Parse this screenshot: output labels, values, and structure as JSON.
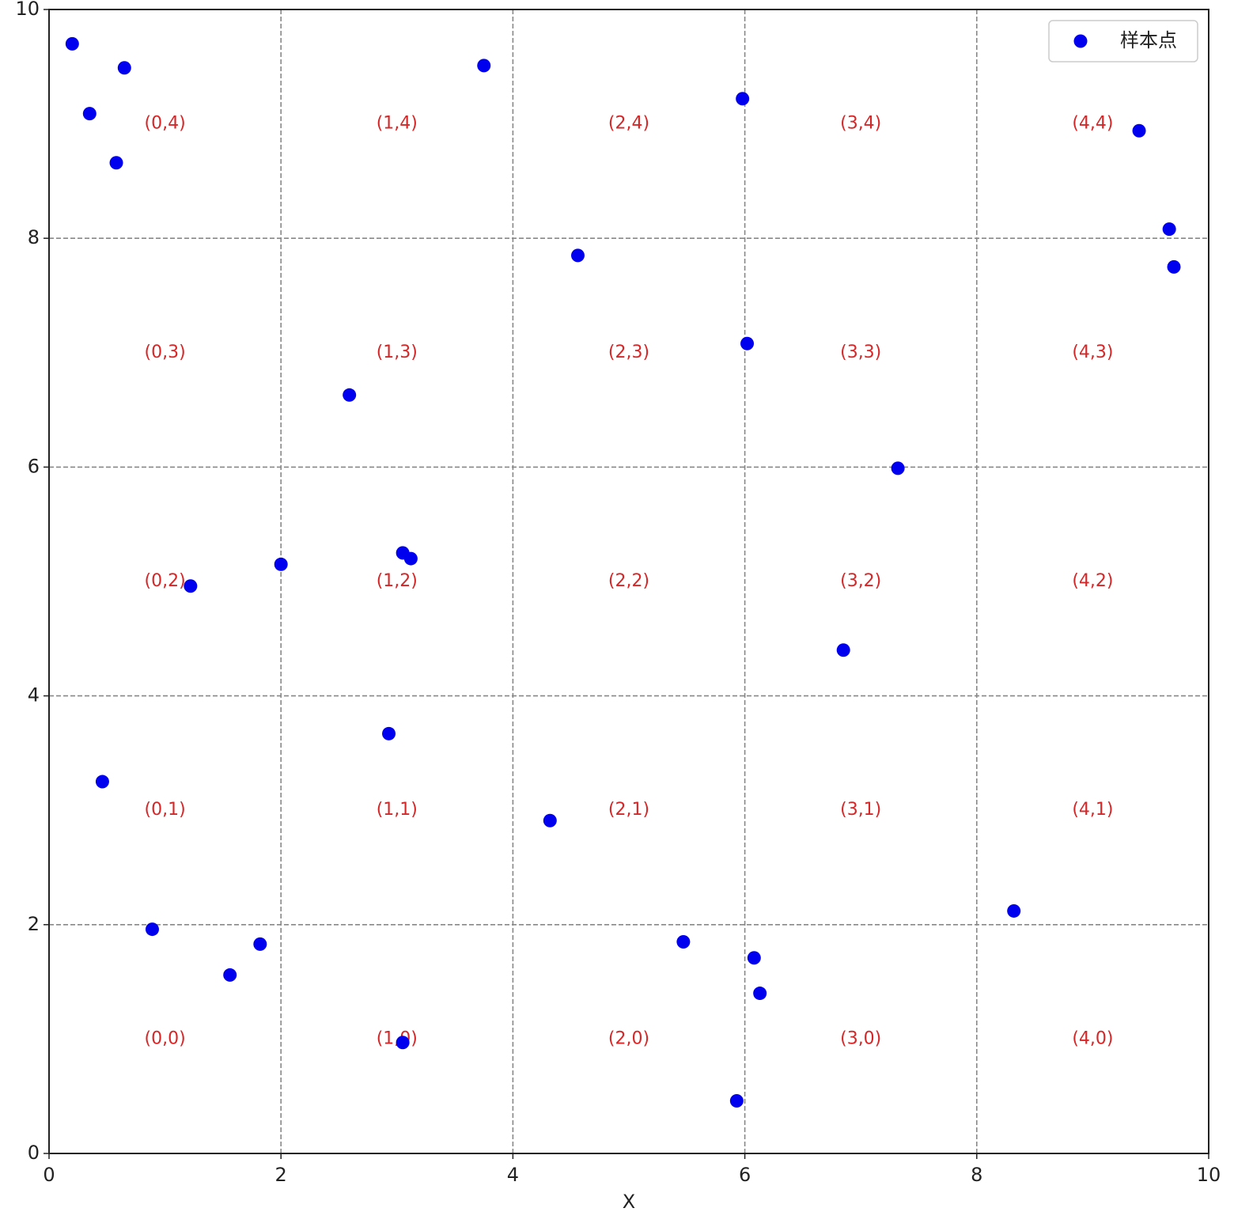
{
  "chart_data": {
    "type": "scatter",
    "x_label": "X",
    "xlim": [
      0,
      10
    ],
    "ylim": [
      0,
      10
    ],
    "xticks": [
      0,
      2,
      4,
      6,
      8,
      10
    ],
    "yticks": [
      0,
      2,
      4,
      6,
      8,
      10
    ],
    "grid": true,
    "legend": "upper right",
    "series": [
      {
        "name": "样本点",
        "color": "#0000ee",
        "x": [
          0.2,
          0.65,
          0.35,
          0.58,
          3.75,
          5.98,
          9.4,
          9.66,
          9.7,
          4.56,
          6.02,
          2.59,
          7.32,
          2.0,
          3.05,
          3.12,
          1.22,
          6.85,
          2.93,
          0.46,
          4.32,
          8.32,
          0.89,
          1.82,
          5.47,
          6.08,
          1.56,
          6.13,
          3.05,
          5.93
        ],
        "values": [
          9.7,
          9.49,
          9.09,
          8.66,
          9.51,
          9.22,
          8.94,
          8.08,
          7.75,
          7.85,
          7.08,
          6.63,
          5.99,
          5.15,
          5.25,
          5.2,
          4.96,
          4.4,
          3.67,
          3.25,
          2.91,
          2.12,
          1.96,
          1.83,
          1.85,
          1.71,
          1.56,
          1.4,
          0.97,
          0.46
        ]
      }
    ],
    "annotations": [
      {
        "text": "(0,0)",
        "x": 1,
        "y": 1
      },
      {
        "text": "(1,0)",
        "x": 3,
        "y": 1
      },
      {
        "text": "(2,0)",
        "x": 5,
        "y": 1
      },
      {
        "text": "(3,0)",
        "x": 7,
        "y": 1
      },
      {
        "text": "(4,0)",
        "x": 9,
        "y": 1
      },
      {
        "text": "(0,1)",
        "x": 1,
        "y": 3
      },
      {
        "text": "(1,1)",
        "x": 3,
        "y": 3
      },
      {
        "text": "(2,1)",
        "x": 5,
        "y": 3
      },
      {
        "text": "(3,1)",
        "x": 7,
        "y": 3
      },
      {
        "text": "(4,1)",
        "x": 9,
        "y": 3
      },
      {
        "text": "(0,2)",
        "x": 1,
        "y": 5
      },
      {
        "text": "(1,2)",
        "x": 3,
        "y": 5
      },
      {
        "text": "(2,2)",
        "x": 5,
        "y": 5
      },
      {
        "text": "(3,2)",
        "x": 7,
        "y": 5
      },
      {
        "text": "(4,2)",
        "x": 9,
        "y": 5
      },
      {
        "text": "(0,3)",
        "x": 1,
        "y": 7
      },
      {
        "text": "(1,3)",
        "x": 3,
        "y": 7
      },
      {
        "text": "(2,3)",
        "x": 5,
        "y": 7
      },
      {
        "text": "(3,3)",
        "x": 7,
        "y": 7
      },
      {
        "text": "(4,3)",
        "x": 9,
        "y": 7
      },
      {
        "text": "(0,4)",
        "x": 1,
        "y": 9
      },
      {
        "text": "(1,4)",
        "x": 3,
        "y": 9
      },
      {
        "text": "(2,4)",
        "x": 5,
        "y": 9
      },
      {
        "text": "(3,4)",
        "x": 7,
        "y": 9
      },
      {
        "text": "(4,4)",
        "x": 9,
        "y": 9
      }
    ]
  }
}
